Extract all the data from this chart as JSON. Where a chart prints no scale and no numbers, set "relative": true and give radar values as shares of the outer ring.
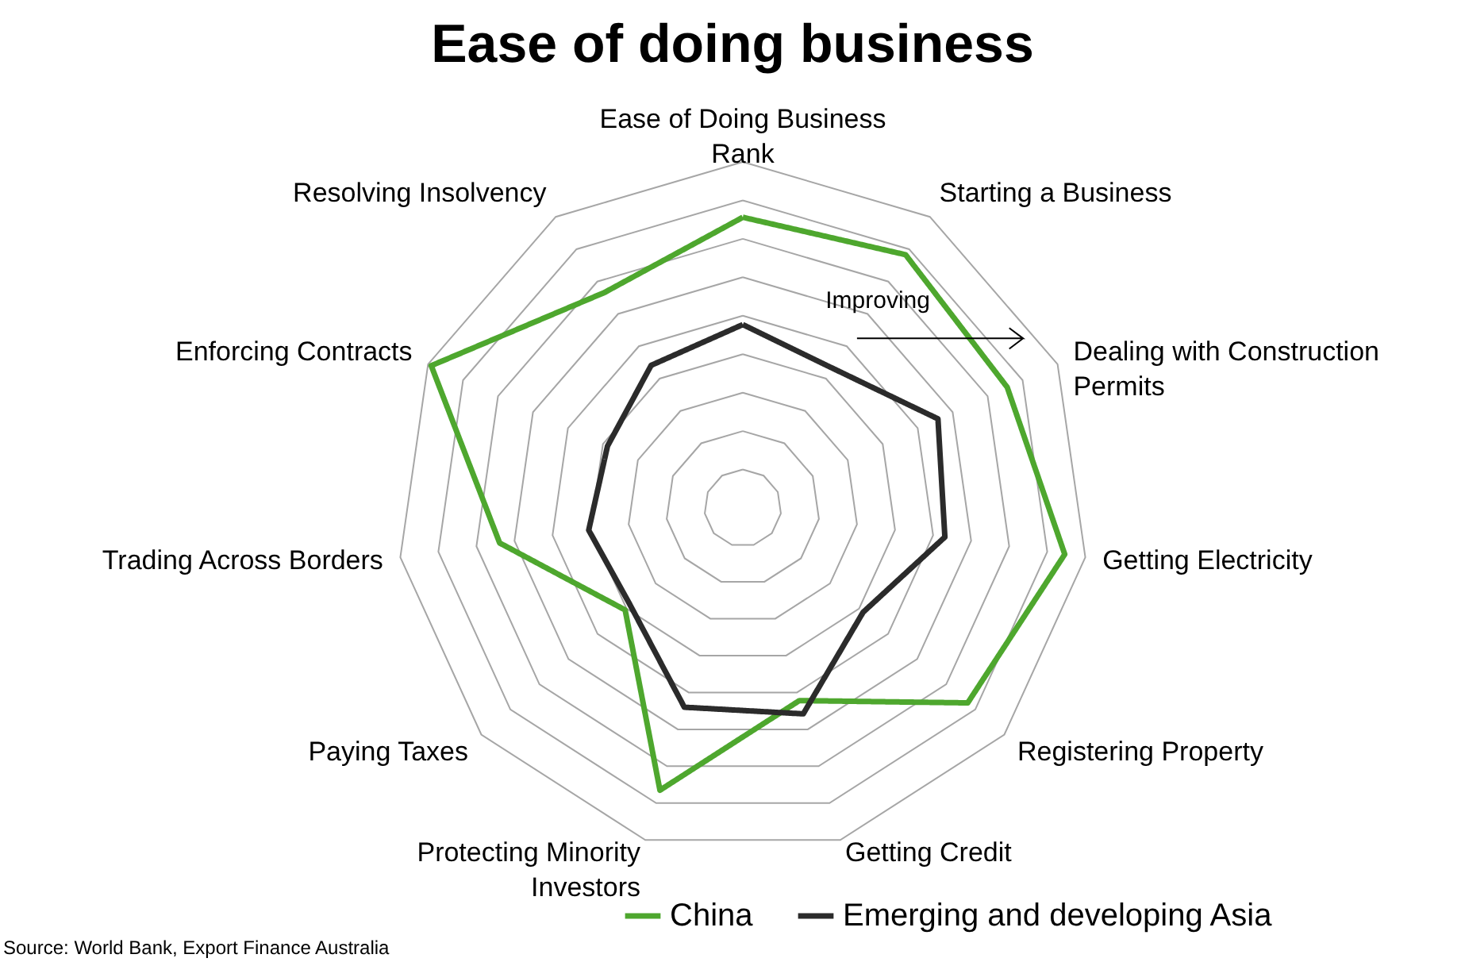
{
  "chart_data": {
    "type": "radar",
    "title": "Ease of doing business",
    "categories": [
      "Ease of Doing Business Rank",
      "Starting a Business",
      "Dealing with Construction Permits",
      "Getting Electricity",
      "Registering Property",
      "Getting Credit",
      "Protecting Minority Investors",
      "Paying Taxes",
      "Trading Across Borders",
      "Enforcing Contracts",
      "Resolving Insolvency"
    ],
    "series": [
      {
        "name": "China",
        "color": "#4ea72e",
        "values": [
          0.84,
          0.87,
          0.84,
          0.94,
          0.86,
          0.58,
          0.85,
          0.45,
          0.71,
          0.99,
          0.74
        ]
      },
      {
        "name": "Emerging and developing Asia",
        "color": "#2b2b2b",
        "values": [
          0.53,
          0.48,
          0.62,
          0.59,
          0.46,
          0.62,
          0.6,
          0.43,
          0.45,
          0.43,
          0.49
        ]
      }
    ],
    "relative": true,
    "grid": true,
    "legend": "bottom",
    "annotations": [
      "Improving",
      "Source: World Bank, Export Finance Australia"
    ]
  }
}
